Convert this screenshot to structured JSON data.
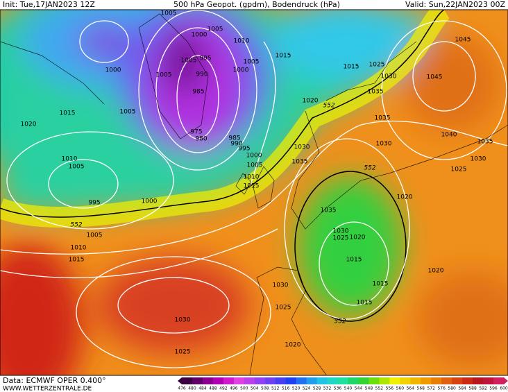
{
  "header": {
    "init": "Init: Tue,17JAN2023 12Z",
    "title": "500 hPa Geopot. (gpdm), Bodendruck (hPa)",
    "valid": "Valid: Sun,22JAN2023 00Z"
  },
  "footer": {
    "data": "Data: ECMWF OPER 0.400°",
    "site": "WWW.WETTERZENTRALE.DE"
  },
  "colorbar": {
    "labels": [
      "476",
      "480",
      "484",
      "488",
      "492",
      "496",
      "500",
      "504",
      "508",
      "512",
      "516",
      "520",
      "524",
      "528",
      "532",
      "536",
      "540",
      "544",
      "548",
      "552",
      "556",
      "560",
      "564",
      "568",
      "572",
      "576",
      "580",
      "584",
      "588",
      "592",
      "596",
      "600"
    ]
  },
  "isobar_labels": [
    "1005",
    "1005",
    "1000",
    "1010",
    "995",
    "1005",
    "1005",
    "990",
    "1000",
    "1005",
    "985",
    "975",
    "980",
    "985",
    "990",
    "995",
    "1000",
    "1005",
    "1010",
    "1015",
    "1000",
    "1005",
    "1015",
    "1020",
    "1010",
    "1005",
    "995",
    "1000",
    "1005",
    "1010",
    "1015",
    "1015",
    "1015",
    "1025",
    "1030",
    "1035",
    "1020",
    "1035",
    "1045",
    "1045",
    "1040",
    "1035",
    "1030",
    "1030",
    "1025",
    "1030",
    "1035",
    "1020",
    "1035",
    "1030",
    "1025",
    "1020",
    "1015",
    "1015",
    "1015",
    "1020",
    "1030",
    "1025",
    "1030",
    "1025",
    "1020"
  ],
  "height_labels": [
    "552",
    "552",
    "552",
    "552"
  ]
}
